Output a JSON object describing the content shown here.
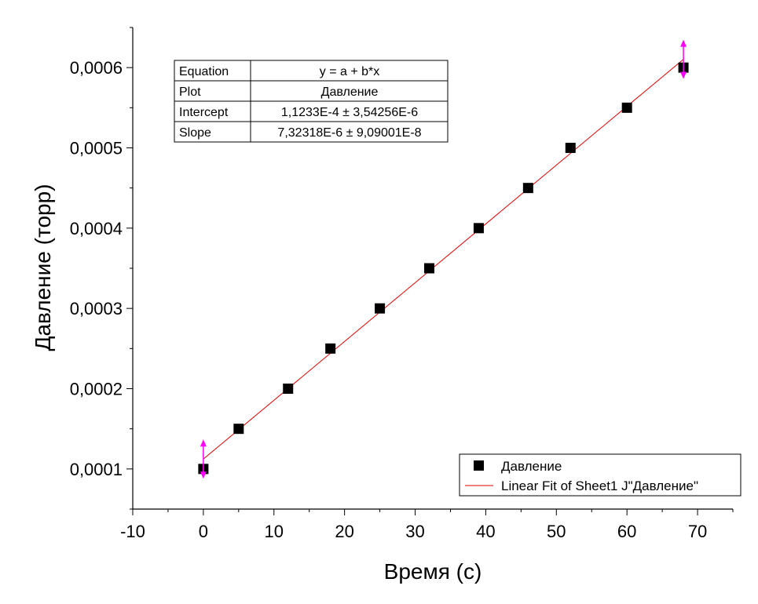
{
  "chart_data": {
    "type": "scatter",
    "xlabel": "Время (с)",
    "ylabel": "Давление (торр)",
    "xlim": [
      -10,
      75
    ],
    "ylim": [
      5e-05,
      0.00065
    ],
    "x_ticks": [
      -10,
      0,
      10,
      20,
      30,
      40,
      50,
      60,
      70
    ],
    "x_tick_labels": [
      "-10",
      "0",
      "10",
      "20",
      "30",
      "40",
      "50",
      "60",
      "70"
    ],
    "y_ticks": [
      0.0001,
      0.0002,
      0.0003,
      0.0004,
      0.0005,
      0.0006
    ],
    "y_tick_labels": [
      "0,0001",
      "0,0002",
      "0,0003",
      "0,0004",
      "0,0005",
      "0,0006"
    ],
    "grid": false,
    "series": [
      {
        "name": "Давление",
        "kind": "scatter",
        "marker": "square",
        "color": "#000000",
        "x": [
          0,
          5,
          12,
          18,
          25,
          32,
          39,
          46,
          52,
          60,
          68
        ],
        "y": [
          0.0001,
          0.00015,
          0.0002,
          0.00025,
          0.0003,
          0.00035,
          0.0004,
          0.00045,
          0.0005,
          0.00055,
          0.0006
        ]
      },
      {
        "name": "Linear Fit of Sheet1 J\"Давление\"",
        "kind": "line",
        "color": "#e00000",
        "intercept": 0.00011233,
        "slope": 7.32318e-06,
        "x_range": [
          0,
          68
        ]
      }
    ],
    "fit_table": {
      "rows": [
        {
          "label": "Equation",
          "value": "y = a + b*x"
        },
        {
          "label": "Plot",
          "value": "Давление"
        },
        {
          "label": "Intercept",
          "value": "1,1233E-4 ± 3,54256E-6"
        },
        {
          "label": "Slope",
          "value": "7,32318E-6 ± 9,09001E-8"
        }
      ],
      "position": "top-left"
    },
    "legend": {
      "position": "bottom-right",
      "entries": [
        {
          "label": "Давление",
          "marker": "square"
        },
        {
          "label": "Linear Fit of Sheet1 J\"Давление\"",
          "marker": "line"
        }
      ]
    },
    "endpoint_markers_color": "#ff00ff"
  }
}
